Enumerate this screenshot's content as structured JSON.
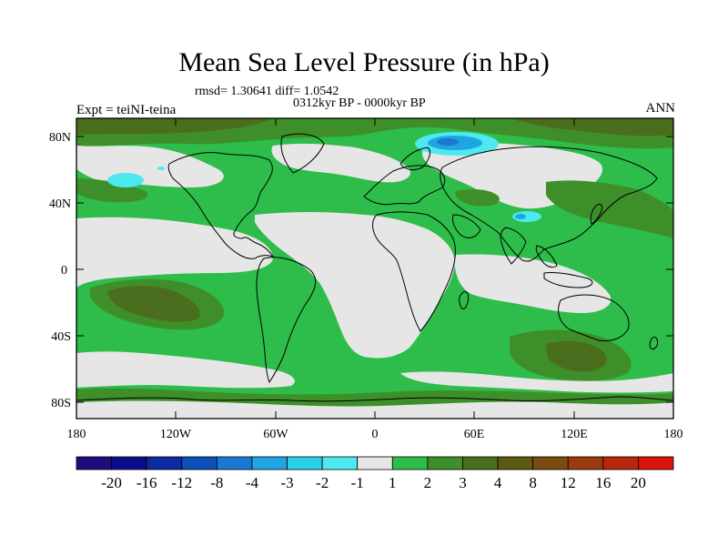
{
  "map": {
    "title": "Mean Sea Level Pressure (in hPa)",
    "stats": "rmsd= 1.30641 diff= 1.0542",
    "period": "0312kyr BP - 0000kyr BP",
    "experiment": "Expt = teiNI-teina",
    "season": "ANN",
    "lat_labels": [
      "80N",
      "40N",
      "0",
      "40S",
      "80S"
    ],
    "lon_labels": [
      "180",
      "120W",
      "60W",
      "0",
      "60E",
      "120E",
      "180"
    ]
  },
  "colorbar": {
    "colors": [
      "#1c0e7c",
      "#0c0c8a",
      "#0d2aa0",
      "#0a50b8",
      "#1a78d2",
      "#1fa6e2",
      "#2ad0ea",
      "#4ee8f0",
      "#e6e6e6",
      "#2ebd4a",
      "#3e8f2a",
      "#4a6e1e",
      "#5e5a12",
      "#7a4c10",
      "#9a3a0e",
      "#b8260c",
      "#d8140c"
    ],
    "labels": [
      "-20",
      "-16",
      "-12",
      "-8",
      "-4",
      "-3",
      "-2",
      "-1",
      "1",
      "2",
      "3",
      "4",
      "8",
      "12",
      "16",
      "20"
    ]
  },
  "fill_colors": {
    "neutral": "#e6e6e6",
    "level_1_2": "#2ebd4a",
    "level_2_3": "#3e8f2a",
    "level_3_4": "#4a6e1e",
    "neg_light": "#4ee8f0",
    "neg_mid": "#1fa6e2",
    "neg_dark": "#1a78d2"
  }
}
